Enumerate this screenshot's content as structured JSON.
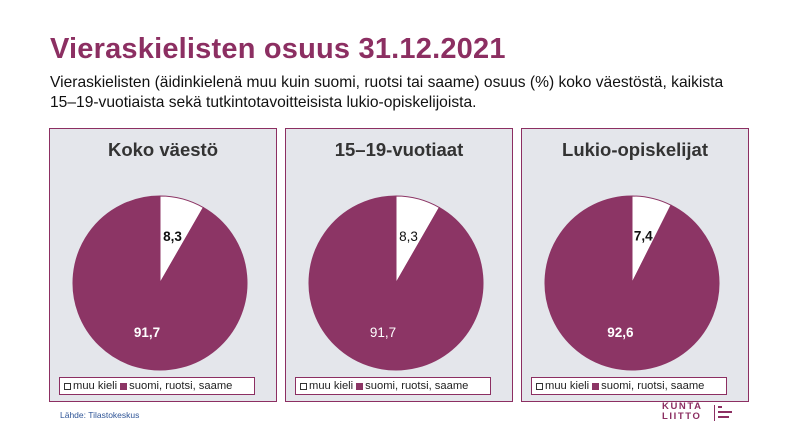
{
  "title": "Vieraskielisten osuus 31.12.2021",
  "subtitle": "Vieraskielisten (äidinkielenä muu kuin suomi, ruotsi tai saame) osuus (%) koko väestöstä, kaikista 15–19-vuotiaista sekä tutkintotavoitteisista lukio-opiskelijoista.",
  "source": "Lähde: Tilastokeskus",
  "logo": {
    "line1": "KUNTA",
    "line2": "LIITTO"
  },
  "colors": {
    "accent": "#8c2f62",
    "panel_bg": "#e4e6eb",
    "slice_small": "#ffffff",
    "slice_large": "#8c3565"
  },
  "chart_data": [
    {
      "type": "pie",
      "title": "Koko väestö",
      "labels": [
        "muu kieli",
        "suomi, ruotsi, saame"
      ],
      "values": [
        8.3,
        91.7
      ],
      "data_labels": [
        "8,3",
        "91,7"
      ],
      "label_bold": true,
      "legend": "bottom"
    },
    {
      "type": "pie",
      "title": "15–19-vuotiaat",
      "labels": [
        "muu kieli",
        "suomi, ruotsi, saame"
      ],
      "values": [
        8.3,
        91.7
      ],
      "data_labels": [
        "8,3",
        "91,7"
      ],
      "label_bold": false,
      "legend": "bottom"
    },
    {
      "type": "pie",
      "title": "Lukio-opiskelijat",
      "labels": [
        "muu kieli",
        "suomi, ruotsi, saame"
      ],
      "values": [
        7.4,
        92.6
      ],
      "data_labels": [
        "7,4",
        "92,6"
      ],
      "label_bold": true,
      "legend": "bottom"
    }
  ]
}
